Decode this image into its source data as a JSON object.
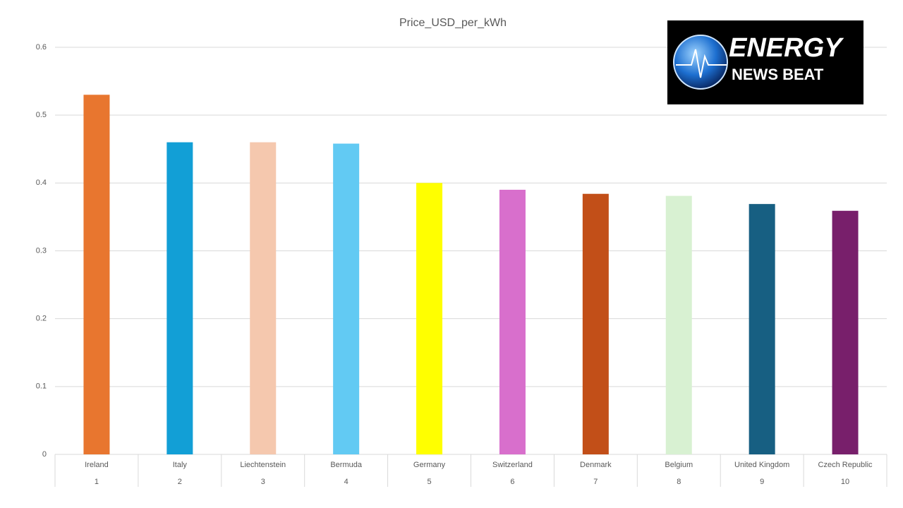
{
  "chart_data": {
    "type": "bar",
    "title": "Price_USD_per_kWh",
    "categories": [
      "Ireland",
      "Italy",
      "Liechtenstein",
      "Bermuda",
      "Germany",
      "Switzerland",
      "Denmark",
      "Belgium",
      "United Kingdom",
      "Czech Republic"
    ],
    "ranks": [
      1,
      2,
      3,
      4,
      5,
      6,
      7,
      8,
      9,
      10
    ],
    "values": [
      0.53,
      0.46,
      0.46,
      0.458,
      0.4,
      0.39,
      0.384,
      0.381,
      0.369,
      0.359
    ],
    "colors": [
      "#e8762f",
      "#129fd6",
      "#f5c8ae",
      "#62caf3",
      "#ffff00",
      "#d86fcc",
      "#c24f18",
      "#d8f1d2",
      "#175f82",
      "#781f6b"
    ],
    "ylim": [
      0,
      0.6
    ],
    "yticks": [
      0,
      0.1,
      0.2,
      0.3,
      0.4,
      0.5,
      0.6
    ],
    "grid": true
  },
  "logo": {
    "line1": "ENERGY",
    "line2": "NEWS BEAT"
  }
}
